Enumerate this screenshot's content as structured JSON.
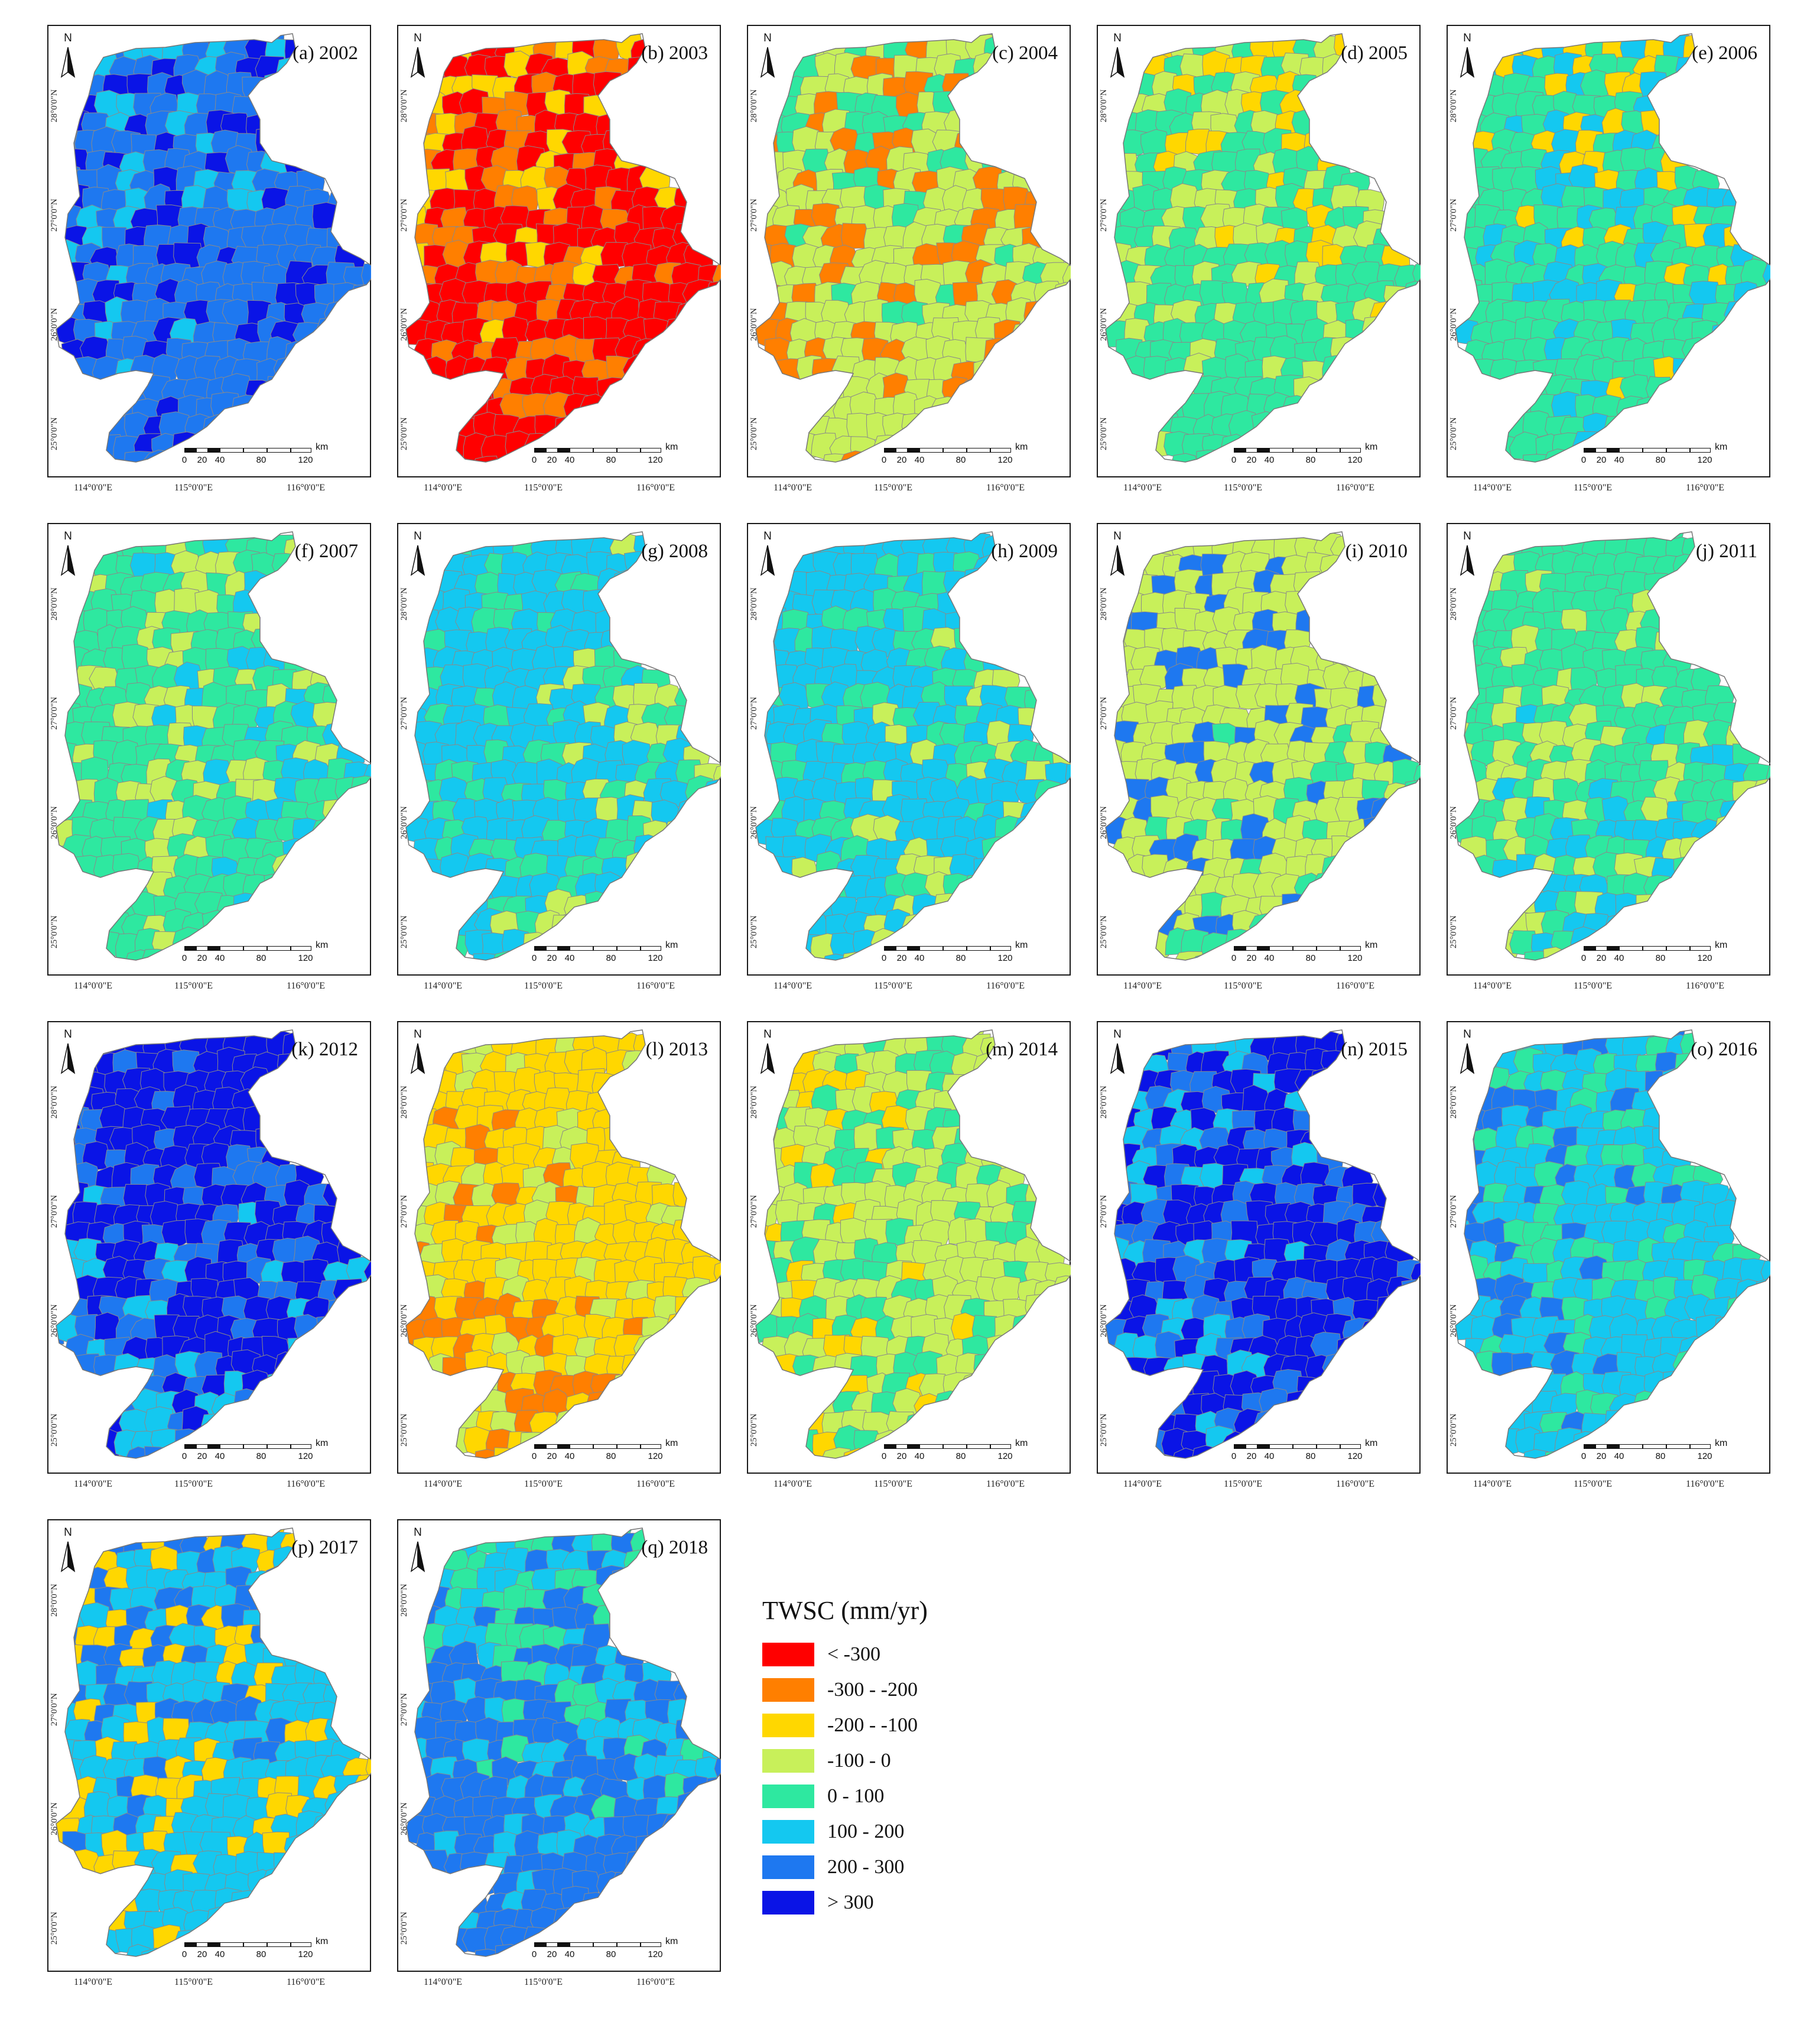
{
  "classes": [
    {
      "label": "< -300",
      "color": "#ff0000"
    },
    {
      "label": "-300 - -200",
      "color": "#ff7f00"
    },
    {
      "label": "-200 - -100",
      "color": "#ffd700"
    },
    {
      "label": "-100 - 0",
      "color": "#c8f05a"
    },
    {
      "label": "0 - 100",
      "color": "#2ee8a0"
    },
    {
      "label": "100 - 200",
      "color": "#14c8f0"
    },
    {
      "label": "200 - 300",
      "color": "#1e78f0"
    },
    {
      "label": "> 300",
      "color": "#0a14e6"
    }
  ],
  "legend": {
    "title": "TWSC (mm/yr)"
  },
  "north_label": "N",
  "scale": {
    "ticks": [
      "0",
      "20",
      "40",
      "80",
      "120"
    ],
    "unit": "km"
  },
  "lat_labels": [
    "28°0'0\"N",
    "27°0'0\"N",
    "26°0'0\"N",
    "25°0'0\"N"
  ],
  "lon_labels": [
    "114°0'0\"E",
    "115°0'0\"E",
    "116°0'0\"E"
  ],
  "panels": [
    {
      "label": "(a) 2002",
      "year": 2002,
      "dominant_class": "200 - 300",
      "secondary_class": "> 300",
      "tertiary_class": "100 - 200"
    },
    {
      "label": "(b) 2003",
      "year": 2003,
      "dominant_class": "< -300",
      "secondary_class": "-300 - -200",
      "tertiary_class": "-200 - -100"
    },
    {
      "label": "(c) 2004",
      "year": 2004,
      "dominant_class": "-100 - 0",
      "secondary_class": "-300 - -200",
      "tertiary_class": "0 - 100"
    },
    {
      "label": "(d) 2005",
      "year": 2005,
      "dominant_class": "0 - 100",
      "secondary_class": "-100 - 0",
      "tertiary_class": "-200 - -100"
    },
    {
      "label": "(e) 2006",
      "year": 2006,
      "dominant_class": "0 - 100",
      "secondary_class": "100 - 200",
      "tertiary_class": "-200 - -100"
    },
    {
      "label": "(f) 2007",
      "year": 2007,
      "dominant_class": "0 - 100",
      "secondary_class": "-100 - 0",
      "tertiary_class": "100 - 200"
    },
    {
      "label": "(g) 2008",
      "year": 2008,
      "dominant_class": "100 - 200",
      "secondary_class": "0 - 100",
      "tertiary_class": "-100 - 0"
    },
    {
      "label": "(h) 2009",
      "year": 2009,
      "dominant_class": "100 - 200",
      "secondary_class": "0 - 100",
      "tertiary_class": "-100 - 0"
    },
    {
      "label": "(i) 2010",
      "year": 2010,
      "dominant_class": "-100 - 0",
      "secondary_class": "200 - 300",
      "tertiary_class": "0 - 100"
    },
    {
      "label": "(j) 2011",
      "year": 2011,
      "dominant_class": "0 - 100",
      "secondary_class": "-100 - 0",
      "tertiary_class": "100 - 200"
    },
    {
      "label": "(k) 2012",
      "year": 2012,
      "dominant_class": "> 300",
      "secondary_class": "200 - 300",
      "tertiary_class": "100 - 200"
    },
    {
      "label": "(l) 2013",
      "year": 2013,
      "dominant_class": "-200 - -100",
      "secondary_class": "-100 - 0",
      "tertiary_class": "-300 - -200"
    },
    {
      "label": "(m) 2014",
      "year": 2014,
      "dominant_class": "-100 - 0",
      "secondary_class": "0 - 100",
      "tertiary_class": "-200 - -100"
    },
    {
      "label": "(n) 2015",
      "year": 2015,
      "dominant_class": "> 300",
      "secondary_class": "200 - 300",
      "tertiary_class": "100 - 200"
    },
    {
      "label": "(o) 2016",
      "year": 2016,
      "dominant_class": "100 - 200",
      "secondary_class": "0 - 100",
      "tertiary_class": "200 - 300"
    },
    {
      "label": "(p) 2017",
      "year": 2017,
      "dominant_class": "100 - 200",
      "secondary_class": "-200 - -100",
      "tertiary_class": "200 - 300"
    },
    {
      "label": "(q) 2018",
      "year": 2018,
      "dominant_class": "200 - 300",
      "secondary_class": "100 - 200",
      "tertiary_class": "0 - 100"
    }
  ]
}
